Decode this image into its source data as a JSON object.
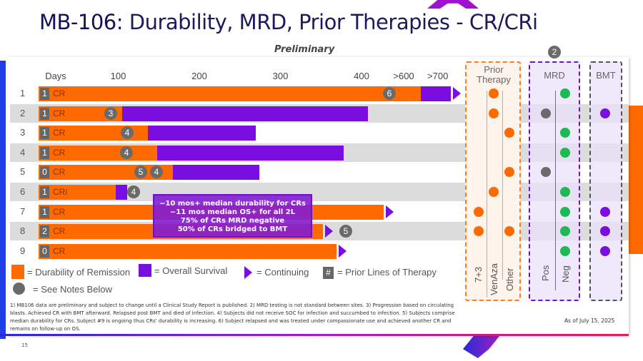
{
  "slide": {
    "title_bold": "MB-106:",
    "title_rest": " Durability, MRD, Prior Therapies - CR/CRi",
    "subtitle": "Preliminary",
    "page_number": "15",
    "as_of": "As of July 15, 2025",
    "mrd_note_marker": "2"
  },
  "colors": {
    "durability": "#ff6a00",
    "overall_survival": "#7a0ee0",
    "notes": "#6a6a6a",
    "mrd_negative": "#1db954",
    "mrd_positive": "#6a6a6a",
    "bmt": "#7a0ee0",
    "prior_therapy": "#ff6a00"
  },
  "chart_data": {
    "type": "bar",
    "orientation": "horizontal-stacked",
    "xlabel": "Days",
    "ticks": [
      {
        "label": "100",
        "value": 100
      },
      {
        "label": "200",
        "value": 200
      },
      {
        "label": "300",
        "value": 300
      },
      {
        "label": "400",
        "value": 400
      },
      {
        "label": ">600",
        "value": 452
      },
      {
        "label": ">700",
        "value": 494
      }
    ],
    "rows": [
      {
        "subject": "1",
        "prior_lines": "1",
        "response": "CR",
        "durability": 473,
        "os": 510,
        "continuing": true,
        "notes": [
          "6"
        ],
        "prior": [
          "VenAza"
        ],
        "mrd": "Neg",
        "bmt": false
      },
      {
        "subject": "2",
        "prior_lines": "1",
        "response": "CR",
        "durability": 105,
        "os": 408,
        "continuing": false,
        "notes": [
          "3"
        ],
        "prior": [
          "VenAza"
        ],
        "mrd": "Pos",
        "bmt": true
      },
      {
        "subject": "3",
        "prior_lines": "1",
        "response": "CR",
        "durability": 137,
        "os": 270,
        "continuing": false,
        "notes": [
          "4"
        ],
        "prior": [
          "Other"
        ],
        "mrd": "Neg",
        "bmt": false
      },
      {
        "subject": "4",
        "prior_lines": "1",
        "response": "CR",
        "durability": 148,
        "os": 378,
        "continuing": false,
        "notes": [
          "4"
        ],
        "prior": [],
        "mrd": "Neg",
        "bmt": false
      },
      {
        "subject": "5",
        "prior_lines": "0",
        "response": "CR",
        "durability": 167,
        "os": 274,
        "continuing": false,
        "notes": [
          "5",
          "4"
        ],
        "prior": [
          "Other"
        ],
        "mrd": "Pos",
        "bmt": false
      },
      {
        "subject": "6",
        "prior_lines": "1",
        "response": "CRi",
        "durability": 97,
        "os": 111,
        "continuing": false,
        "notes": [
          "4"
        ],
        "prior": [
          "VenAza"
        ],
        "mrd": "Neg",
        "bmt": false
      },
      {
        "subject": "7",
        "prior_lines": "1",
        "response": "CR",
        "durability": 427,
        "os": 427,
        "continuing": true,
        "notes": [],
        "prior": [
          "7+3"
        ],
        "mrd": "Neg",
        "bmt": true
      },
      {
        "subject": "8",
        "prior_lines": "2",
        "response": "CR",
        "durability": 352,
        "os": 352,
        "continuing": true,
        "notes": [
          "5"
        ],
        "prior": [
          "7+3",
          "Other"
        ],
        "mrd": "Neg",
        "bmt": true
      },
      {
        "subject": "9",
        "prior_lines": "0",
        "response": "CR",
        "durability": 369,
        "os": 369,
        "continuing": true,
        "notes": [],
        "prior": [],
        "mrd": "Neg",
        "bmt": true
      }
    ],
    "callout": [
      "~10 mos+ median durability for CRs",
      "~11 mos median OS+ for all 2L",
      "75% of CRs MRD negative",
      "50% of CRs bridged to BMT"
    ]
  },
  "columns": {
    "prior_therapy": {
      "title": "Prior Therapy",
      "items": [
        "7+3",
        "VenAza",
        "Other"
      ]
    },
    "mrd": {
      "title": "MRD",
      "items": [
        "Pos",
        "Neg"
      ]
    },
    "bmt": {
      "title": "BMT"
    }
  },
  "legend": {
    "durability": "= Durability of Remission",
    "os": "= Overall Survival",
    "continuing": "= Continuing",
    "lines_symbol": "#",
    "lines": "= Prior Lines of Therapy",
    "notes": "= See Notes Below"
  },
  "footnote": "1) MB106 data are preliminary and subject to change until a Clinical Study Report is published. 2) MRD testing is not standard between sites. 3) Progression based on circulating blasts. Achieved CR with BMT afterward. Relapsed post BMT and died of infection.  4) Subjects did not receive SOC for infection and succumbed to infection. 5) Subjects comprise median durability for CRs. Subject #9 is ongoing thus CRs' durability is increasing. 6) Subject relapsed and was treated under compassionate use and achieved another CR and remains on follow-up on OS."
}
